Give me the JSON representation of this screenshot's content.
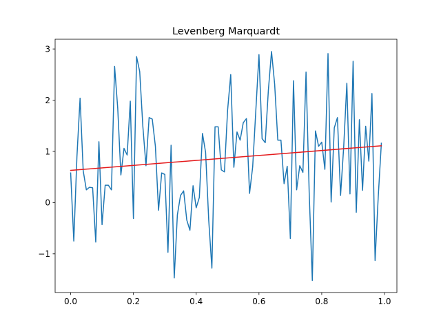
{
  "chart_data": {
    "type": "line",
    "title": "Levenberg Marquardt",
    "xlabel": "",
    "ylabel": "",
    "xlim": [
      -0.0495,
      1.0395
    ],
    "ylim": [
      -1.755,
      3.19
    ],
    "x_ticks": [
      {
        "value": 0.0,
        "label": "0.0"
      },
      {
        "value": 0.2,
        "label": "0.2"
      },
      {
        "value": 0.4,
        "label": "0.4"
      },
      {
        "value": 0.6,
        "label": "0.6"
      },
      {
        "value": 0.8,
        "label": "0.8"
      },
      {
        "value": 1.0,
        "label": "1.0"
      }
    ],
    "y_ticks": [
      {
        "value": -1,
        "label": "−1"
      },
      {
        "value": 0,
        "label": "0"
      },
      {
        "value": 1,
        "label": "1"
      },
      {
        "value": 2,
        "label": "2"
      },
      {
        "value": 3,
        "label": "3"
      }
    ],
    "grid": false,
    "legend": "none",
    "series": [
      {
        "color": "#1f77b4",
        "x": [
          0.0,
          0.01,
          0.02,
          0.03,
          0.04,
          0.05,
          0.06,
          0.07,
          0.08,
          0.09,
          0.1,
          0.11,
          0.12,
          0.13,
          0.14,
          0.15,
          0.16,
          0.17,
          0.18,
          0.19,
          0.2,
          0.21,
          0.22,
          0.23,
          0.24,
          0.25,
          0.26,
          0.27,
          0.28,
          0.29,
          0.3,
          0.31,
          0.32,
          0.33,
          0.34,
          0.35,
          0.36,
          0.37,
          0.38,
          0.39,
          0.4,
          0.41,
          0.42,
          0.43,
          0.44,
          0.45,
          0.46,
          0.47,
          0.48,
          0.49,
          0.5,
          0.51,
          0.52,
          0.53,
          0.54,
          0.55,
          0.56,
          0.57,
          0.58,
          0.59,
          0.6,
          0.61,
          0.62,
          0.63,
          0.64,
          0.65,
          0.66,
          0.67,
          0.68,
          0.69,
          0.7,
          0.71,
          0.72,
          0.73,
          0.74,
          0.75,
          0.76,
          0.77,
          0.78,
          0.79,
          0.8,
          0.81,
          0.82,
          0.83,
          0.84,
          0.85,
          0.86,
          0.87,
          0.88,
          0.89,
          0.9,
          0.91,
          0.92,
          0.93,
          0.94,
          0.95,
          0.96,
          0.97,
          0.98,
          0.99
        ],
        "y": [
          0.58,
          -0.75,
          0.9,
          2.04,
          0.62,
          0.25,
          0.3,
          0.29,
          -0.77,
          1.19,
          -0.43,
          0.34,
          0.34,
          0.25,
          2.66,
          1.84,
          0.54,
          1.06,
          0.93,
          1.98,
          -0.31,
          2.85,
          2.56,
          1.49,
          0.72,
          1.66,
          1.63,
          1.1,
          -0.15,
          0.58,
          0.55,
          -0.97,
          1.12,
          -1.47,
          -0.24,
          0.14,
          0.23,
          -0.34,
          -0.54,
          0.33,
          -0.1,
          0.1,
          1.35,
          0.98,
          -0.35,
          -1.28,
          1.48,
          1.48,
          0.64,
          0.6,
          1.8,
          2.5,
          0.69,
          1.38,
          1.22,
          1.56,
          1.64,
          0.18,
          0.7,
          1.8,
          2.89,
          1.25,
          1.17,
          2.2,
          2.95,
          2.31,
          1.22,
          1.22,
          0.37,
          0.71,
          -0.7,
          2.38,
          0.25,
          0.72,
          0.59,
          2.55,
          0.2,
          -1.52,
          1.4,
          1.1,
          1.18,
          0.65,
          2.91,
          0.01,
          1.46,
          1.66,
          0.14,
          1.09,
          2.33,
          0.17,
          2.76,
          -0.19,
          1.62,
          0.24,
          1.49,
          0.81,
          2.13,
          -1.13,
          0.11,
          1.16
        ]
      },
      {
        "color": "#e41a1c",
        "x": [
          0.0,
          0.99
        ],
        "y": [
          0.63,
          1.11
        ]
      }
    ]
  }
}
